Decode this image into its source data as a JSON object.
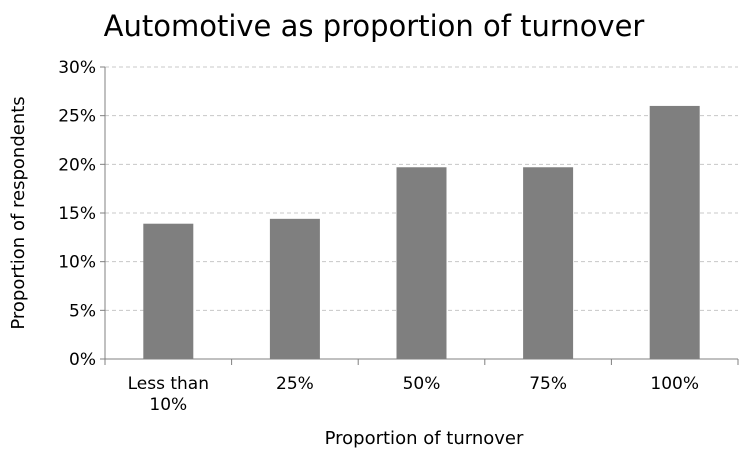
{
  "chart_data": {
    "type": "bar",
    "title": "Automotive as proportion of turnover",
    "xlabel": "Proportion of turnover",
    "ylabel": "Proportion of respondents",
    "categories": [
      [
        "Less than",
        "10%"
      ],
      [
        "25%"
      ],
      [
        "50%"
      ],
      [
        "75%"
      ],
      [
        "100%"
      ]
    ],
    "values": [
      13.9,
      14.4,
      19.7,
      19.7,
      26.0
    ],
    "ylim": [
      0,
      30
    ],
    "yticks": [
      "0%",
      "5%",
      "10%",
      "15%",
      "20%",
      "25%",
      "30%"
    ],
    "ytick_values": [
      0,
      5,
      10,
      15,
      20,
      25,
      30
    ],
    "grid": true,
    "bar_color": "#7f7f7f"
  }
}
